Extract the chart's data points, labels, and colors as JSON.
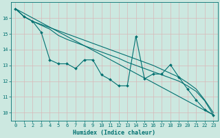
{
  "xlabel": "Humidex (Indice chaleur)",
  "ylabel": "",
  "bg_color": "#cce8e0",
  "plot_bg_color": "#cce8e0",
  "grid_color": "#aaccC4",
  "line_color": "#007070",
  "xlim": [
    -0.5,
    23.5
  ],
  "ylim": [
    9.5,
    17.0
  ],
  "xticks": [
    0,
    1,
    2,
    3,
    4,
    5,
    6,
    7,
    8,
    9,
    10,
    11,
    12,
    13,
    14,
    15,
    16,
    17,
    18,
    19,
    20,
    21,
    22,
    23
  ],
  "yticks": [
    10,
    11,
    12,
    13,
    14,
    15,
    16
  ],
  "series": [
    {
      "x": [
        0,
        1,
        2,
        3,
        4,
        5,
        6,
        7,
        8,
        9,
        10,
        11,
        12,
        13,
        14,
        15,
        16,
        17,
        18,
        19,
        20,
        21,
        22,
        23
      ],
      "y": [
        16.6,
        16.1,
        15.8,
        15.1,
        13.35,
        13.1,
        13.1,
        12.8,
        13.35,
        13.35,
        12.4,
        12.1,
        11.7,
        11.7,
        14.85,
        12.15,
        12.45,
        12.45,
        13.05,
        12.25,
        11.5,
        10.8,
        10.2,
        9.85
      ],
      "marker": true
    },
    {
      "x": [
        0,
        1,
        2,
        3,
        4,
        5,
        6,
        7,
        8,
        9,
        10,
        11,
        12,
        13,
        14,
        15,
        16,
        17,
        18,
        19,
        20,
        21,
        22,
        23
      ],
      "y": [
        16.6,
        16.1,
        15.8,
        15.6,
        15.4,
        15.2,
        15.0,
        14.8,
        14.6,
        14.4,
        14.2,
        14.0,
        13.8,
        13.6,
        13.4,
        13.2,
        13.0,
        12.75,
        12.5,
        12.25,
        11.9,
        11.5,
        10.8,
        10.0
      ],
      "marker": false
    },
    {
      "x": [
        0,
        1,
        2,
        3,
        4,
        5,
        6,
        7,
        8,
        9,
        10,
        11,
        12,
        13,
        14,
        15,
        16,
        17,
        18,
        19,
        20,
        21,
        22,
        23
      ],
      "y": [
        16.6,
        16.1,
        15.8,
        15.55,
        15.3,
        14.9,
        14.65,
        14.45,
        14.25,
        14.05,
        13.85,
        13.65,
        13.45,
        13.2,
        13.0,
        12.8,
        12.6,
        12.4,
        12.2,
        12.0,
        11.7,
        11.35,
        10.75,
        9.85
      ],
      "marker": false
    },
    {
      "x": [
        0,
        23
      ],
      "y": [
        16.6,
        9.85
      ],
      "marker": false
    }
  ]
}
